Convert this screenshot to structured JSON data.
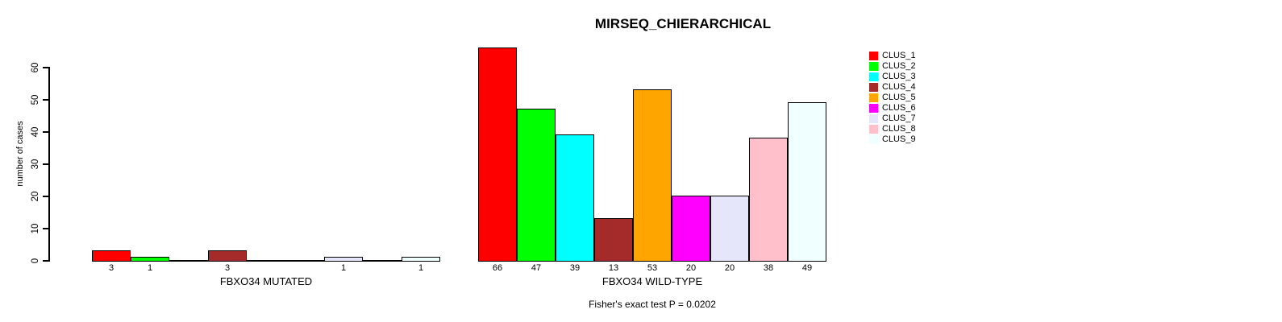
{
  "title": "MIRSEQ_CHIERARCHICAL",
  "y_axis": {
    "label": "number of cases",
    "ticks": [
      0,
      10,
      20,
      30,
      40,
      50,
      60
    ]
  },
  "panels": [
    {
      "xlabel": "FBXO34 MUTATED"
    },
    {
      "xlabel": "FBXO34 WILD-TYPE"
    }
  ],
  "legend": {
    "items": [
      {
        "label": "CLUS_1",
        "color": "#FF0000"
      },
      {
        "label": "CLUS_2",
        "color": "#00FF00"
      },
      {
        "label": "CLUS_3",
        "color": "#00FFFF"
      },
      {
        "label": "CLUS_4",
        "color": "#A52A2A"
      },
      {
        "label": "CLUS_5",
        "color": "#FFA500"
      },
      {
        "label": "CLUS_6",
        "color": "#FF00FF"
      },
      {
        "label": "CLUS_7",
        "color": "#E6E6FA"
      },
      {
        "label": "CLUS_8",
        "color": "#FFC0CB"
      },
      {
        "label": "CLUS_9",
        "color": "#F0FFFF"
      }
    ]
  },
  "footer": {
    "fisher_text": "Fisher's exact test P = 0.0202"
  },
  "chart_data": {
    "type": "bar",
    "title": "MIRSEQ_CHIERARCHICAL",
    "xlabel_left": "FBXO34 MUTATED",
    "xlabel_right": "FBXO34 WILD-TYPE",
    "ylabel": "number of cases",
    "ylim": [
      0,
      66
    ],
    "y_ticks": [
      0,
      10,
      20,
      30,
      40,
      50,
      60
    ],
    "categories": [
      "CLUS_1",
      "CLUS_2",
      "CLUS_3",
      "CLUS_4",
      "CLUS_5",
      "CLUS_6",
      "CLUS_7",
      "CLUS_8",
      "CLUS_9"
    ],
    "colors": [
      "#FF0000",
      "#00FF00",
      "#00FFFF",
      "#A52A2A",
      "#FFA500",
      "#FF00FF",
      "#E6E6FA",
      "#FFC0CB",
      "#F0FFFF"
    ],
    "series": [
      {
        "name": "FBXO34 MUTATED",
        "values": [
          3,
          1,
          0,
          3,
          0,
          0,
          1,
          0,
          1
        ]
      },
      {
        "name": "FBXO34 WILD-TYPE",
        "values": [
          66,
          47,
          39,
          13,
          53,
          20,
          20,
          38,
          49
        ]
      }
    ],
    "bar_value_labels_visible": true,
    "zero_bars_hidden": true,
    "annotation": "Fisher's exact test P = 0.0202",
    "legend_position": "right",
    "grid": false
  }
}
